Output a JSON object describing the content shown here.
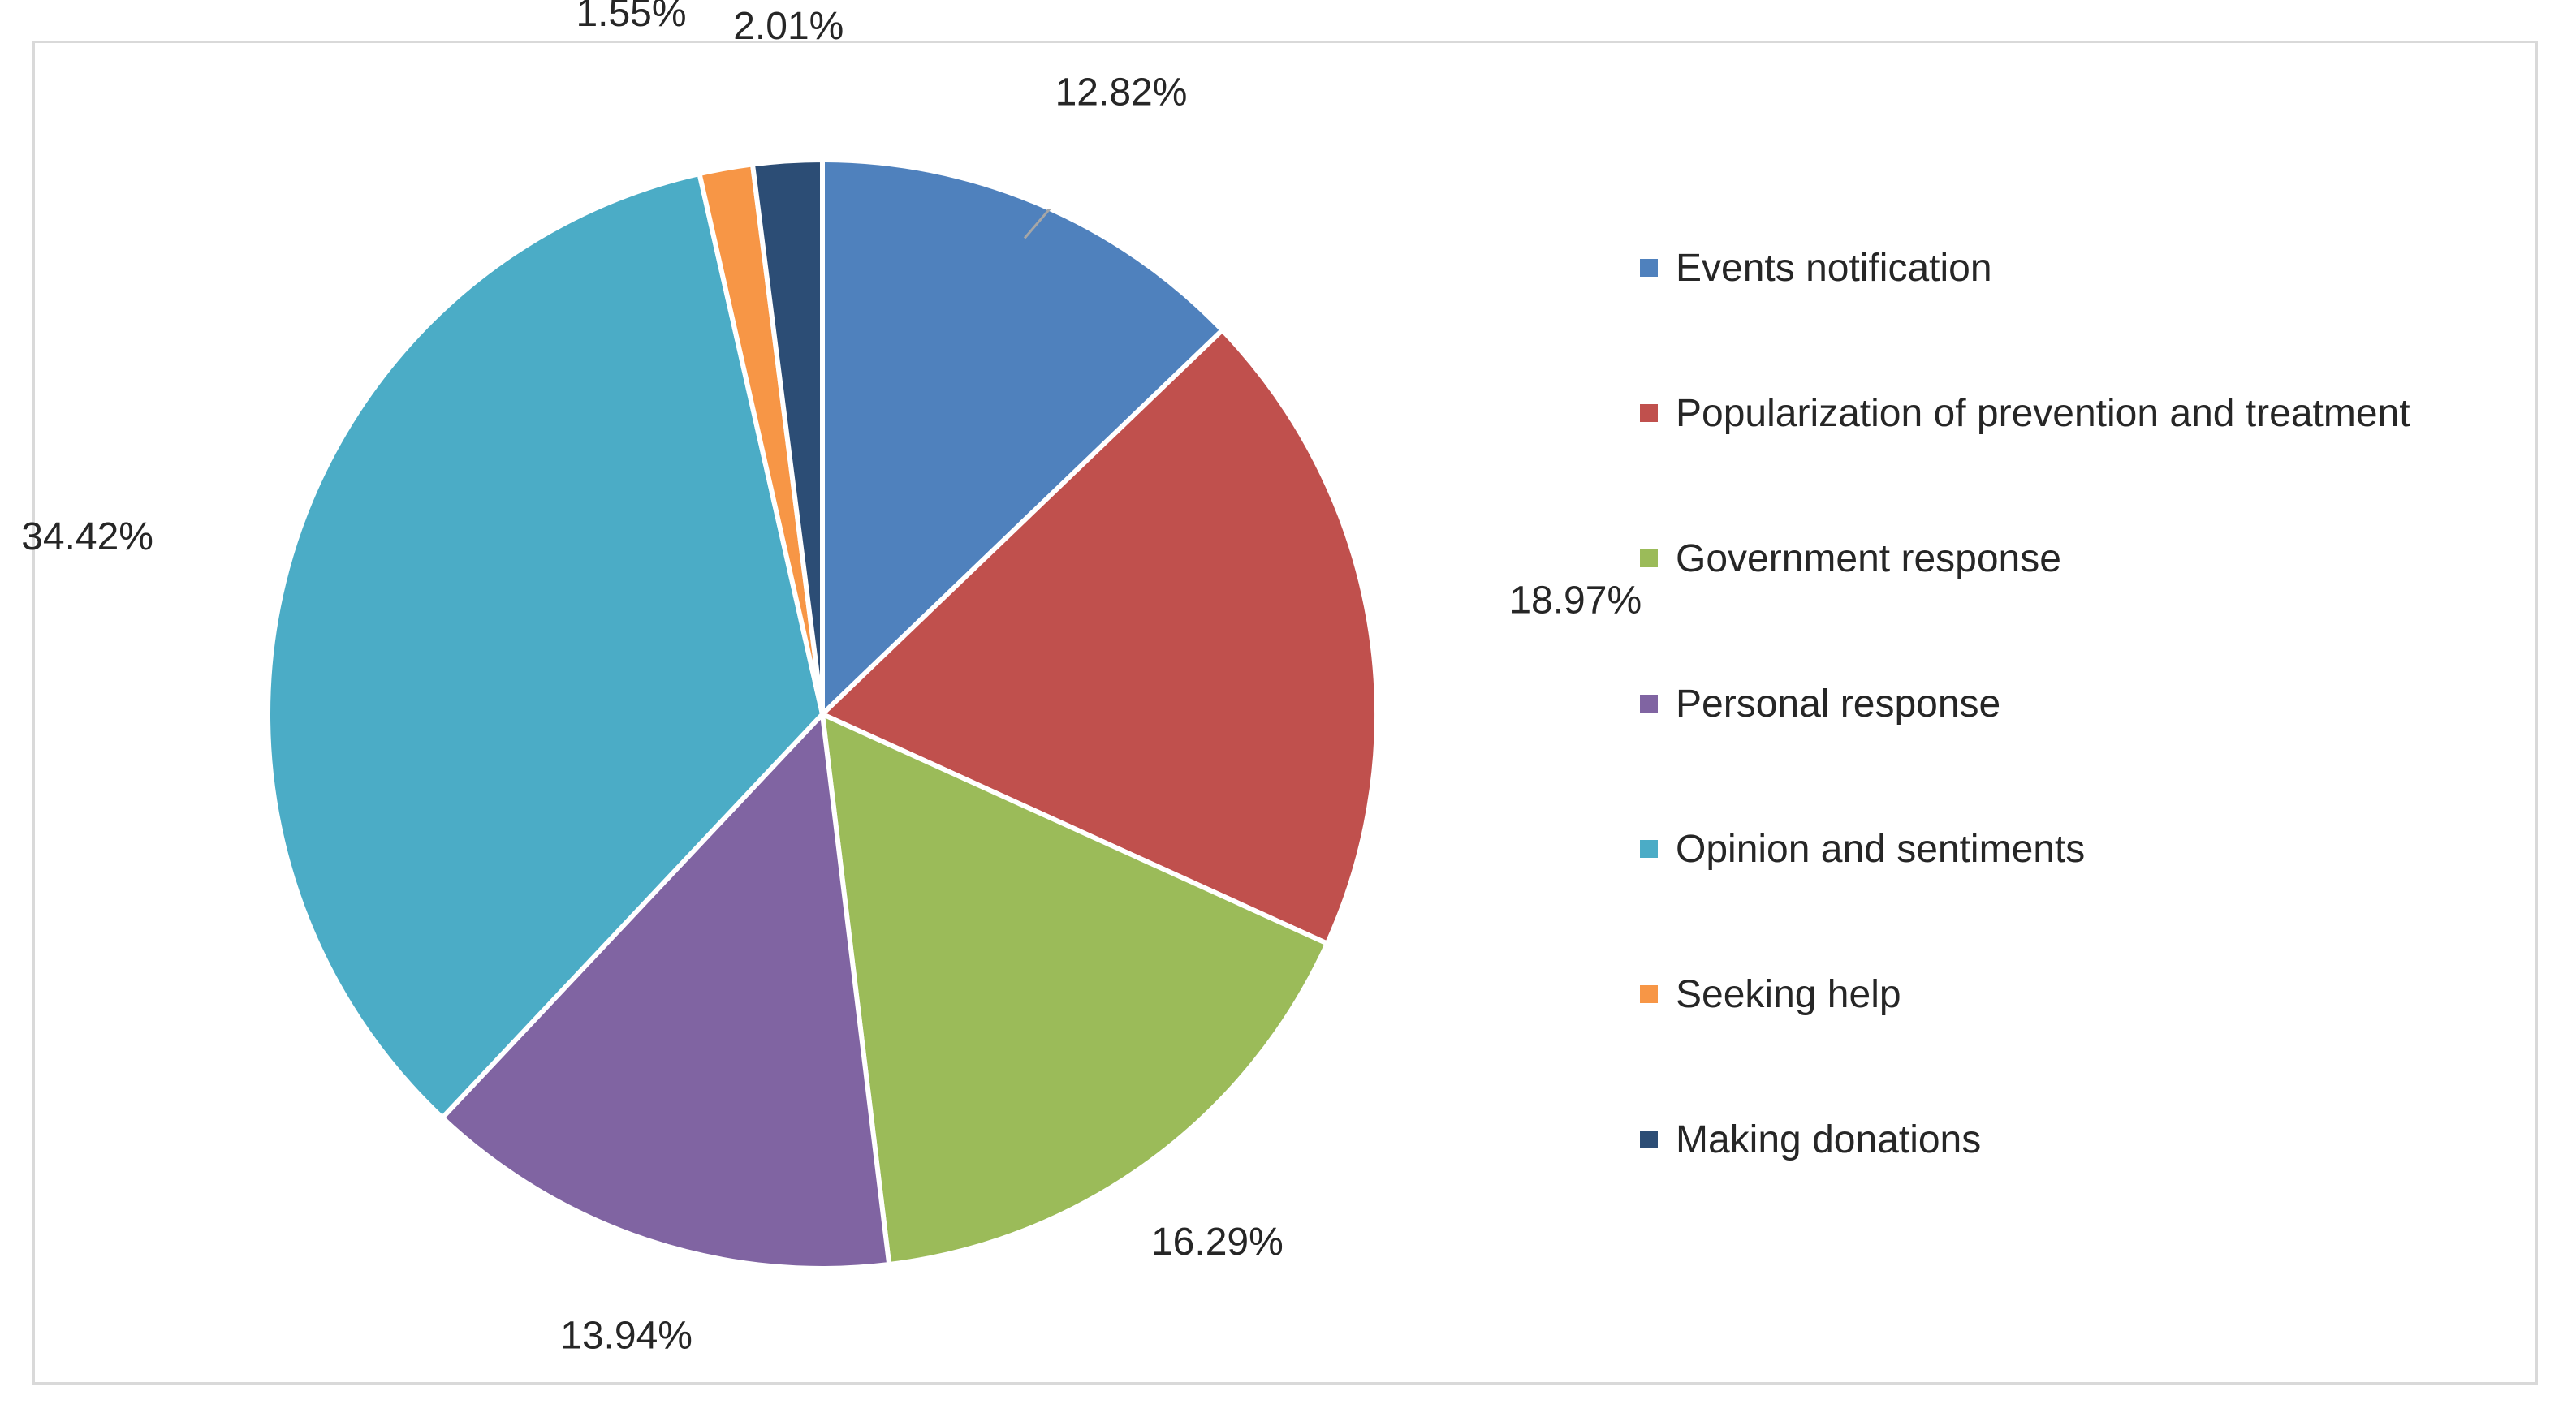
{
  "chart_data": {
    "type": "pie",
    "title": "",
    "slices": [
      {
        "label": "Events notification",
        "value": 12.82,
        "display": "12.82%",
        "color": "#4F81BD"
      },
      {
        "label": "Popularization of prevention and treatment",
        "value": 18.97,
        "display": "18.97%",
        "color": "#C0504D"
      },
      {
        "label": "Government response",
        "value": 16.29,
        "display": "16.29%",
        "color": "#9BBB59"
      },
      {
        "label": "Personal response",
        "value": 13.94,
        "display": "13.94%",
        "color": "#8064A2"
      },
      {
        "label": "Opinion and sentiments",
        "value": 34.42,
        "display": "34.42%",
        "color": "#4BACC6"
      },
      {
        "label": "Seeking help",
        "value": 1.55,
        "display": "1.55%",
        "color": "#F79646"
      },
      {
        "label": "Making donations",
        "value": 2.01,
        "display": "2.01%",
        "color": "#2C4D75"
      }
    ],
    "legend_position": "right",
    "start_angle_deg": 0,
    "direction": "clockwise"
  }
}
